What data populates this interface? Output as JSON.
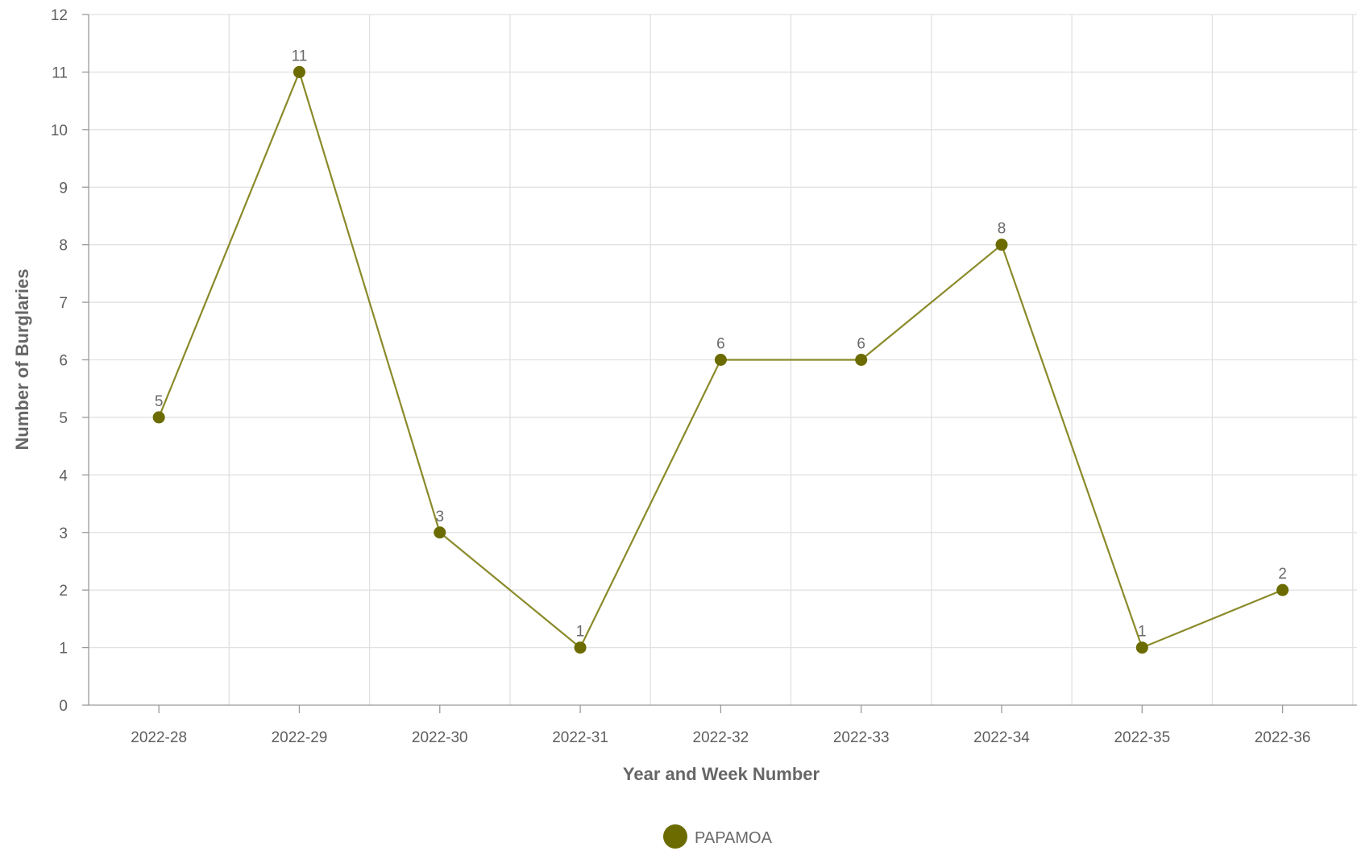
{
  "chart_data": {
    "type": "line",
    "title": "",
    "xlabel": "Year and Week Number",
    "ylabel": "Number of Burglaries",
    "categories": [
      "2022-28",
      "2022-29",
      "2022-30",
      "2022-31",
      "2022-32",
      "2022-33",
      "2022-34",
      "2022-35",
      "2022-36"
    ],
    "series": [
      {
        "name": "PAPAMOA",
        "values": [
          5,
          11,
          3,
          1,
          6,
          6,
          8,
          1,
          2
        ],
        "color": "#6b6b00"
      }
    ],
    "ylim": [
      0,
      12
    ],
    "yticks": [
      0,
      1,
      2,
      3,
      4,
      5,
      6,
      7,
      8,
      9,
      10,
      11,
      12
    ],
    "grid": true,
    "data_labels": true,
    "legend": {
      "position": "bottom-center",
      "marker": "circle"
    },
    "line_color": "#8a8a2a"
  }
}
